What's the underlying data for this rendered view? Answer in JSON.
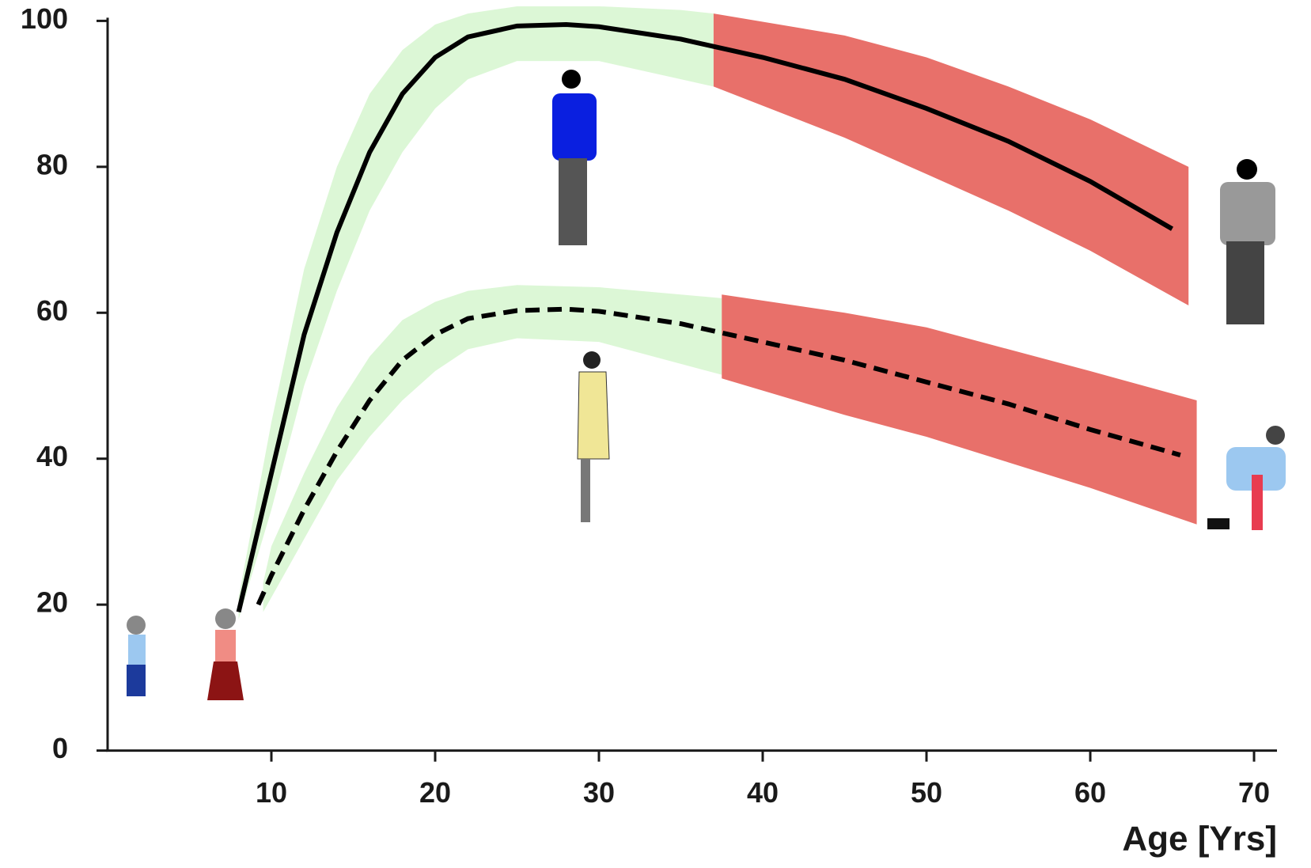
{
  "chart_data": {
    "type": "line",
    "x_label": "Age [Yrs]",
    "xlim": [
      0,
      71.4
    ],
    "xticks": [
      10,
      20,
      30,
      40,
      50,
      60,
      70
    ],
    "ylim": [
      0,
      100
    ],
    "yticks": [
      0,
      20,
      40,
      60,
      80,
      100
    ],
    "bands": [
      {
        "color": "#dcf7d6",
        "x": [
          8,
          10,
          12,
          14,
          16,
          18,
          20,
          22,
          25,
          30,
          35,
          37
        ],
        "upper": [
          21,
          45,
          66,
          80,
          90,
          96,
          99.5,
          101,
          102,
          102,
          101.5,
          101
        ],
        "lower": [
          18,
          33,
          50,
          63,
          74,
          82,
          88,
          92,
          94.5,
          94.5,
          92,
          91
        ]
      },
      {
        "color": "#e8706a",
        "x": [
          37,
          45,
          50,
          55,
          60,
          66
        ],
        "upper": [
          101,
          98,
          95,
          91,
          86.5,
          80
        ],
        "lower": [
          91,
          84,
          79,
          74,
          68.5,
          61
        ]
      },
      {
        "color": "#dcf7d6",
        "x": [
          9.5,
          10,
          12,
          14,
          16,
          18,
          20,
          22,
          25,
          30,
          35,
          37.5
        ],
        "upper": [
          23,
          28,
          38,
          47,
          54,
          59,
          61.5,
          63,
          63.8,
          63.5,
          62.5,
          62
        ],
        "lower": [
          19,
          21,
          29,
          37,
          43,
          48,
          52,
          55,
          56.5,
          56,
          53,
          51.5
        ]
      },
      {
        "color": "#e8706a",
        "x": [
          37.5,
          45,
          50,
          55,
          60,
          66.5
        ],
        "upper": [
          62.5,
          60,
          58,
          55,
          52,
          48
        ],
        "lower": [
          51,
          46,
          43,
          39.5,
          36,
          31
        ]
      }
    ],
    "series": [
      {
        "color": "#000000",
        "style": "solid",
        "x": [
          8,
          10,
          12,
          14,
          16,
          18,
          20,
          22,
          25,
          28,
          30,
          35,
          40,
          45,
          50,
          55,
          60,
          65
        ],
        "values": [
          19,
          38,
          57,
          71,
          82,
          90,
          95,
          97.8,
          99.3,
          99.5,
          99.2,
          97.5,
          95,
          92,
          88,
          83.5,
          78,
          71.5
        ]
      },
      {
        "color": "#000000",
        "style": "dashed",
        "x": [
          9.2,
          10,
          12,
          14,
          16,
          18,
          20,
          22,
          25,
          28,
          30,
          35,
          40,
          45,
          50,
          55,
          60,
          65.5
        ],
        "values": [
          20,
          24,
          33,
          41,
          48,
          53.5,
          57,
          59.2,
          60.3,
          60.5,
          60.2,
          58.5,
          56,
          53.5,
          50.5,
          47.5,
          44,
          40.5
        ]
      }
    ]
  }
}
